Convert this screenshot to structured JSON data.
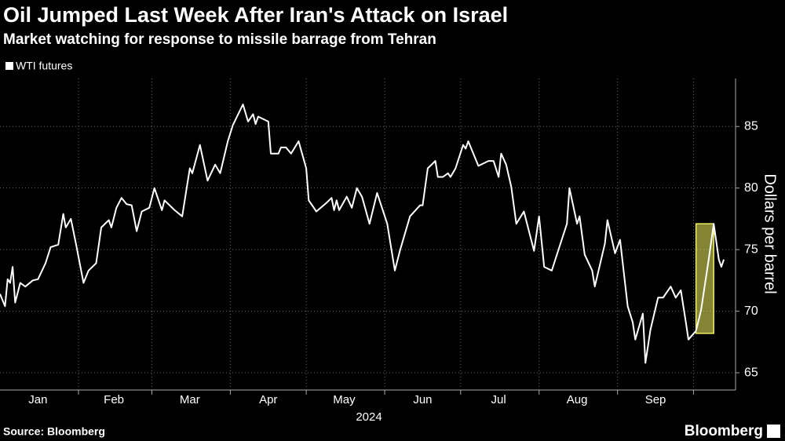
{
  "chart_data": {
    "type": "line",
    "title": "Oil Jumped Last Week After Iran's Attack on Israel",
    "subtitle": "Market watching for response to missile barrage from Tehran",
    "y_label": "Dollars per barrel",
    "x_label": "2024",
    "source": "Source: Bloomberg",
    "brand": "Bloomberg",
    "series": [
      {
        "name": "WTI futures",
        "color": "#ffffff",
        "x": [
          1,
          3,
          4,
          5,
          6,
          7,
          9,
          11,
          14,
          16,
          19,
          21,
          24,
          26,
          27,
          29,
          31,
          34,
          36,
          39,
          41,
          44,
          45,
          47,
          49,
          51,
          53,
          55,
          57,
          60,
          62,
          65,
          66,
          70,
          73,
          76,
          77,
          80,
          83,
          86,
          88,
          91,
          93,
          97,
          99,
          101,
          102,
          103,
          107,
          108,
          111,
          112,
          114,
          116,
          119,
          122,
          123,
          126,
          130,
          132,
          133,
          134,
          135,
          138,
          140,
          142,
          144,
          147,
          150,
          154,
          157,
          159,
          163,
          167,
          168,
          170,
          173,
          174,
          176,
          178,
          179,
          181,
          184,
          185,
          186,
          190,
          194,
          196,
          198,
          199,
          201,
          203,
          205,
          208,
          212,
          214,
          216,
          219,
          222,
          225,
          226,
          229,
          230,
          232,
          235,
          236,
          240,
          241,
          244,
          246,
          249,
          251,
          252,
          255,
          256,
          258,
          261,
          263,
          266,
          268,
          270,
          272,
          273,
          276,
          278,
          281,
          283,
          285,
          286,
          287
        ],
        "values": [
          71.4,
          70.4,
          72.6,
          72.3,
          73.6,
          70.7,
          72.3,
          72.0,
          72.5,
          72.6,
          73.9,
          75.2,
          75.4,
          77.9,
          76.8,
          77.5,
          75.5,
          72.3,
          73.3,
          73.9,
          76.8,
          77.4,
          76.8,
          78.4,
          79.2,
          78.7,
          78.6,
          76.5,
          78.1,
          78.4,
          80.0,
          78.2,
          79.0,
          78.2,
          77.7,
          81.6,
          81.2,
          83.5,
          80.6,
          81.9,
          81.2,
          83.8,
          85.1,
          86.8,
          85.4,
          86.0,
          85.2,
          85.8,
          85.4,
          82.8,
          82.8,
          83.3,
          83.3,
          82.8,
          83.8,
          81.6,
          79.0,
          78.1,
          78.8,
          79.2,
          78.2,
          79.0,
          78.2,
          79.3,
          78.4,
          80.0,
          79.3,
          77.1,
          79.6,
          77.1,
          73.3,
          74.9,
          77.7,
          78.6,
          78.6,
          81.6,
          82.2,
          80.9,
          80.9,
          81.2,
          80.9,
          81.6,
          83.5,
          83.2,
          83.8,
          81.8,
          82.2,
          82.2,
          80.9,
          82.8,
          81.9,
          80.1,
          77.1,
          78.1,
          74.9,
          77.7,
          73.6,
          73.3,
          75.2,
          77.1,
          80.0,
          77.1,
          77.7,
          74.6,
          73.3,
          72.0,
          75.5,
          77.4,
          74.7,
          75.8,
          70.4,
          69.1,
          67.7,
          69.8,
          65.8,
          68.5,
          71.1,
          71.1,
          72.0,
          71.1,
          71.7,
          69.1,
          67.7,
          68.4,
          70.1,
          74.2,
          77.1,
          74.2,
          73.6,
          74.2
        ]
      }
    ],
    "highlight": {
      "x": [
        276,
        283
      ],
      "y": [
        68.2,
        77.1
      ],
      "color": "#f0f060"
    },
    "xlim": [
      1,
      291
    ],
    "xticks": [
      {
        "value": 16,
        "label": "Jan"
      },
      {
        "value": 46,
        "label": "Feb"
      },
      {
        "value": 76,
        "label": "Mar"
      },
      {
        "value": 107,
        "label": "Apr"
      },
      {
        "value": 137,
        "label": "May"
      },
      {
        "value": 168,
        "label": "Jun"
      },
      {
        "value": 198,
        "label": "Jul"
      },
      {
        "value": 229,
        "label": "Aug"
      },
      {
        "value": 260,
        "label": "Sep"
      }
    ],
    "xgrid": [
      32,
      61,
      92,
      122,
      153,
      183,
      214,
      245,
      275
    ],
    "ylim": [
      63.6,
      88.9
    ],
    "yticks": [
      65,
      70,
      75,
      80,
      85
    ],
    "grid": true
  }
}
